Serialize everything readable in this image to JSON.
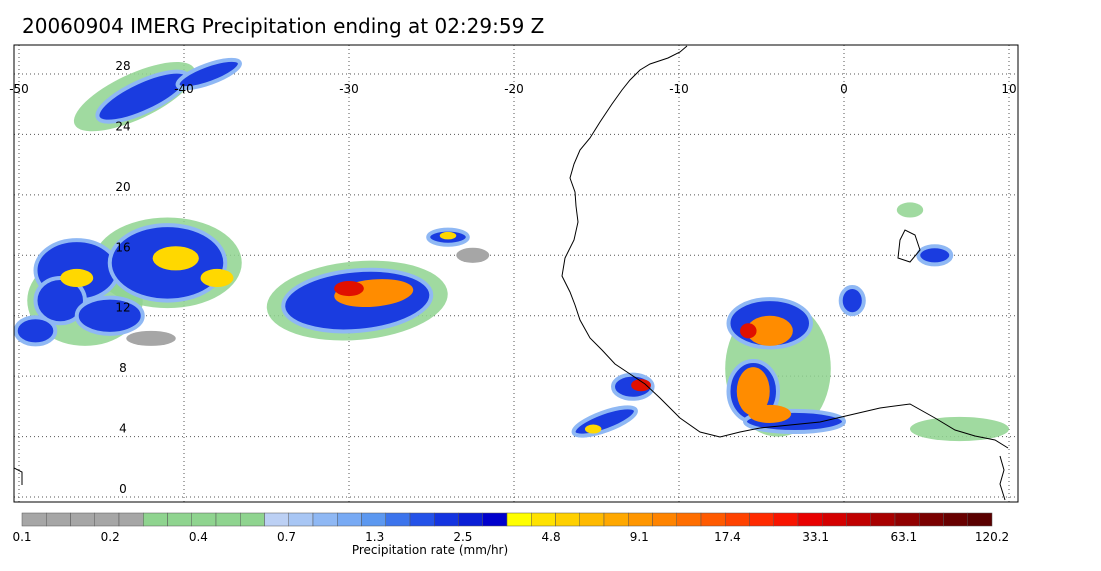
{
  "title": "20060904 IMERG Precipitation ending at 02:29:59 Z",
  "map": {
    "lon_range": [
      -50,
      10
    ],
    "lat_range": [
      -1,
      28.5
    ],
    "lon_ticks": [
      -50,
      -40,
      -30,
      -20,
      -10,
      0,
      10
    ],
    "lat_ticks": [
      0,
      4,
      8,
      12,
      16,
      20,
      24,
      28
    ],
    "gridlines": "dotted",
    "coastline_color": "#000000"
  },
  "colorbar": {
    "title": "Precipitation rate (mm/hr)",
    "labels": [
      "0.1",
      "0.2",
      "0.4",
      "0.7",
      "1.3",
      "2.5",
      "4.8",
      "9.1",
      "17.4",
      "33.1",
      "63.1",
      "120.2"
    ],
    "colors": [
      "#a6a6a6",
      "#a6a6a6",
      "#a6a6a6",
      "#a6a6a6",
      "#a6a6a6",
      "#8fd48f",
      "#8fd48f",
      "#8fd48f",
      "#8fd48f",
      "#8fd48f",
      "#bcd0f4",
      "#a8c6f4",
      "#8fb8f4",
      "#78aaf4",
      "#5c98f0",
      "#3c74ec",
      "#2452e8",
      "#1434e0",
      "#0a1ed6",
      "#0000cc",
      "#ffff00",
      "#ffe200",
      "#ffd000",
      "#ffba00",
      "#ffa800",
      "#ff9600",
      "#ff8400",
      "#ff6e00",
      "#ff5a00",
      "#ff4200",
      "#ff2a00",
      "#f81400",
      "#e80000",
      "#d40000",
      "#c00000",
      "#a80000",
      "#900000",
      "#7a0000",
      "#680000",
      "#5a0000"
    ]
  },
  "precip_cells": [
    {
      "lon": -42.5,
      "lat": 26.5,
      "rx": 3.0,
      "ry": 1.0,
      "level": "blue",
      "rot": -25
    },
    {
      "lon": -38.5,
      "lat": 28.0,
      "rx": 2.0,
      "ry": 0.6,
      "level": "blue",
      "rot": -20
    },
    {
      "lon": -46.5,
      "lat": 15.0,
      "rx": 2.5,
      "ry": 2.0,
      "level": "blue",
      "rot": 0
    },
    {
      "lon": -47.5,
      "lat": 13.0,
      "rx": 1.5,
      "ry": 1.5,
      "level": "blue",
      "rot": 0
    },
    {
      "lon": -49.0,
      "lat": 11.0,
      "rx": 1.2,
      "ry": 0.9,
      "level": "blue",
      "rot": 0
    },
    {
      "lon": -44.5,
      "lat": 12.0,
      "rx": 2.0,
      "ry": 1.2,
      "level": "blue",
      "rot": 0
    },
    {
      "lon": -41.0,
      "lat": 15.5,
      "rx": 3.5,
      "ry": 2.5,
      "level": "blue",
      "rot": 0
    },
    {
      "lon": -29.5,
      "lat": 13.0,
      "rx": 4.5,
      "ry": 2.0,
      "level": "blue",
      "rot": -5
    },
    {
      "lon": -24.0,
      "lat": 17.2,
      "rx": 1.2,
      "ry": 0.5,
      "level": "blue",
      "rot": 0
    },
    {
      "lon": -4.5,
      "lat": 11.5,
      "rx": 2.5,
      "ry": 1.6,
      "level": "blue",
      "rot": 0
    },
    {
      "lon": -5.5,
      "lat": 7.0,
      "rx": 1.5,
      "ry": 2.0,
      "level": "blue",
      "rot": 0
    },
    {
      "lon": -3.0,
      "lat": 5.0,
      "rx": 3.0,
      "ry": 0.7,
      "level": "blue",
      "rot": 0
    },
    {
      "lon": -12.8,
      "lat": 7.3,
      "rx": 1.2,
      "ry": 0.8,
      "level": "blue",
      "rot": 0
    },
    {
      "lon": -14.5,
      "lat": 5.0,
      "rx": 2.0,
      "ry": 0.6,
      "level": "blue",
      "rot": -20
    },
    {
      "lon": 5.5,
      "lat": 16.0,
      "rx": 1.0,
      "ry": 0.6,
      "level": "blue",
      "rot": 0
    },
    {
      "lon": 0.5,
      "lat": 13.0,
      "rx": 0.7,
      "ry": 0.9,
      "level": "blue",
      "rot": 0
    },
    {
      "lon": -46.5,
      "lat": 14.5,
      "rx": 1.0,
      "ry": 0.6,
      "level": "yellow",
      "rot": 0
    },
    {
      "lon": -40.5,
      "lat": 15.8,
      "rx": 1.4,
      "ry": 0.8,
      "level": "yellow",
      "rot": 0
    },
    {
      "lon": -38.0,
      "lat": 14.5,
      "rx": 1.0,
      "ry": 0.6,
      "level": "yellow",
      "rot": 0
    },
    {
      "lon": -28.5,
      "lat": 13.5,
      "rx": 2.4,
      "ry": 0.9,
      "level": "orange",
      "rot": -5
    },
    {
      "lon": -30.0,
      "lat": 13.8,
      "rx": 0.9,
      "ry": 0.5,
      "level": "red",
      "rot": 0
    },
    {
      "lon": -4.5,
      "lat": 11.0,
      "rx": 1.4,
      "ry": 1.0,
      "level": "orange",
      "rot": 0
    },
    {
      "lon": -5.8,
      "lat": 11.0,
      "rx": 0.5,
      "ry": 0.5,
      "level": "red",
      "rot": 0
    },
    {
      "lon": -5.5,
      "lat": 7.0,
      "rx": 1.0,
      "ry": 1.6,
      "level": "orange",
      "rot": 0
    },
    {
      "lon": -4.5,
      "lat": 5.5,
      "rx": 1.3,
      "ry": 0.6,
      "level": "orange",
      "rot": 0
    },
    {
      "lon": -12.3,
      "lat": 7.4,
      "rx": 0.6,
      "ry": 0.4,
      "level": "red",
      "rot": 0
    },
    {
      "lon": -15.2,
      "lat": 4.5,
      "rx": 0.5,
      "ry": 0.3,
      "level": "yellow",
      "rot": 0
    },
    {
      "lon": -24.0,
      "lat": 17.3,
      "rx": 0.5,
      "ry": 0.25,
      "level": "yellow",
      "rot": 0
    },
    {
      "lon": -22.5,
      "lat": 16.0,
      "rx": 1.0,
      "ry": 0.5,
      "level": "gray",
      "rot": 0
    },
    {
      "lon": -42.0,
      "lat": 10.5,
      "rx": 1.5,
      "ry": 0.5,
      "level": "gray",
      "rot": 0
    },
    {
      "lon": -46.0,
      "lat": 13.0,
      "rx": 3.5,
      "ry": 3.0,
      "level": "green",
      "rot": 0
    },
    {
      "lon": -41.0,
      "lat": 15.5,
      "rx": 4.5,
      "ry": 3.0,
      "level": "green",
      "rot": 0
    },
    {
      "lon": -29.5,
      "lat": 13.0,
      "rx": 5.5,
      "ry": 2.6,
      "level": "green",
      "rot": -5
    },
    {
      "lon": -4.0,
      "lat": 8.5,
      "rx": 3.2,
      "ry": 4.5,
      "level": "green",
      "rot": 0
    },
    {
      "lon": 4.0,
      "lat": 19.0,
      "rx": 0.8,
      "ry": 0.5,
      "level": "green",
      "rot": 0
    },
    {
      "lon": 7.0,
      "lat": 4.5,
      "rx": 3.0,
      "ry": 0.8,
      "level": "green",
      "rot": 0
    },
    {
      "lon": -43.0,
      "lat": 26.5,
      "rx": 4.0,
      "ry": 1.5,
      "level": "green",
      "rot": -25
    }
  ]
}
